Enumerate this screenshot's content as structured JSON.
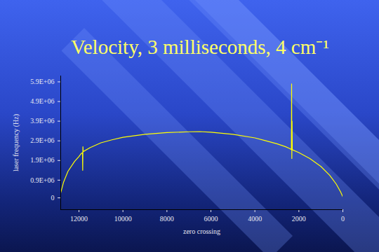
{
  "chart_data": {
    "type": "line",
    "title": "Velocity, 3 milliseconds, 4 cm⁻¹",
    "x_label": "zero crossing",
    "y_label": "laser frequency (Hz)",
    "color": "#ffff00",
    "x": [
      12830,
      12700,
      12500,
      12200,
      12000,
      11900,
      11840,
      11830,
      11820,
      11810,
      11500,
      11000,
      10500,
      10000,
      9000,
      8000,
      7000,
      6500,
      6000,
      5000,
      4000,
      3500,
      3000,
      2600,
      2400,
      2340,
      2330,
      2320,
      2310,
      2300,
      2000,
      1500,
      1000,
      600,
      300,
      100,
      0
    ],
    "values": [
      250000,
      800000,
      1350000,
      1850000,
      2100000,
      2250000,
      2300000,
      1400000,
      2600000,
      2350000,
      2550000,
      2800000,
      2950000,
      3080000,
      3230000,
      3320000,
      3360000,
      3370000,
      3340000,
      3230000,
      3050000,
      2900000,
      2750000,
      2600000,
      2500000,
      2450000,
      5800000,
      2000000,
      3900000,
      2450000,
      2300000,
      2000000,
      1600000,
      1150000,
      700000,
      300000,
      50000
    ],
    "xlim": [
      12830,
      0
    ],
    "xticks": [
      12000,
      10000,
      8000,
      6000,
      4000,
      2000,
      0
    ],
    "ylim": [
      -600000,
      6200000
    ],
    "yticks": [
      0,
      {
        "value": 900000,
        "label": "0.9E+06"
      },
      {
        "value": 1900000,
        "label": "1.9E+06"
      },
      {
        "value": 2900000,
        "label": "2.9E+06"
      },
      {
        "value": 3900000,
        "label": "3.9E+06"
      },
      {
        "value": 4900000,
        "label": "4.9E+06"
      },
      {
        "value": 5900000,
        "label": "5.9E+06"
      }
    ],
    "grid": false
  }
}
